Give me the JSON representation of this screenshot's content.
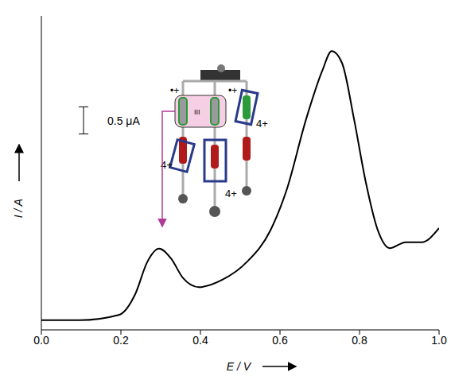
{
  "chart_data": {
    "type": "line",
    "x": [
      0.0,
      0.096,
      0.196,
      0.236,
      0.266,
      0.296,
      0.326,
      0.356,
      0.396,
      0.456,
      0.516,
      0.576,
      0.616,
      0.666,
      0.706,
      0.73,
      0.756,
      0.786,
      0.816,
      0.846,
      0.876,
      0.916,
      0.956,
      1.0
    ],
    "values": [
      0.18,
      0.18,
      0.28,
      0.66,
      1.25,
      1.5,
      1.32,
      0.96,
      0.79,
      0.93,
      1.25,
      1.84,
      2.57,
      3.9,
      4.78,
      5.15,
      4.93,
      3.9,
      2.72,
      1.84,
      1.51,
      1.62,
      1.62,
      1.88
    ],
    "color": "#000000",
    "xlim": [
      0,
      1
    ],
    "xticks": [
      {
        "value": 0,
        "label": "0.0"
      },
      {
        "value": 0.2,
        "label": "0.2"
      },
      {
        "value": 0.4,
        "label": "0.4"
      },
      {
        "value": 0.6,
        "label": "0.6"
      },
      {
        "value": 0.8,
        "label": "0.8"
      },
      {
        "value": 1,
        "label": "1.0"
      }
    ],
    "ylim": [
      0,
      5.8
    ],
    "yticks": [],
    "tick_labels": "x",
    "x_label": "E / V",
    "y_label": "I / A",
    "scale_bar": {
      "value": 0.5,
      "label": "0.5 μA"
    },
    "inset_labels": [
      "•+",
      "•+",
      "4+",
      "4+",
      "4+",
      "III"
    ]
  }
}
